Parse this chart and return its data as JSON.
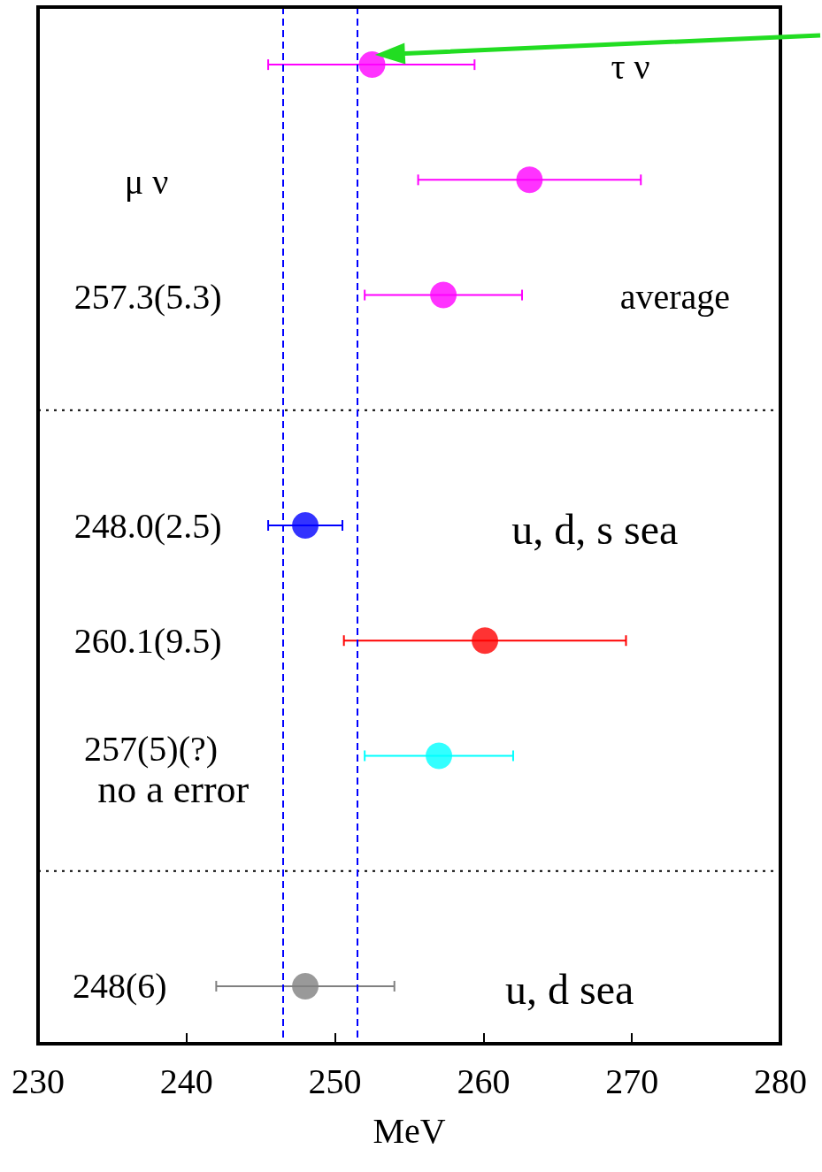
{
  "chart_data": {
    "type": "scatter",
    "orientation": "horizontal",
    "categories": [
      null,
      null,
      null,
      null,
      null,
      null,
      null,
      null,
      null
    ],
    "values": [
      252.5,
      263.1,
      257.3,
      null,
      248.0,
      260.1,
      257.0,
      null,
      248.0
    ],
    "errors": [
      [
        245.5,
        259.4
      ],
      7.5,
      5.3,
      null,
      2.5,
      9.5,
      5,
      null,
      6
    ],
    "colors": [
      "#ff00ff",
      "#ff00ff",
      "#ff00ff",
      null,
      "#0000ff",
      "#ff0000",
      "#00ffff",
      null,
      "#808080"
    ],
    "xlabel": "MeV",
    "xlim": [
      230,
      280
    ],
    "xticks": [
      230,
      240,
      250,
      260,
      270,
      280
    ],
    "tick_labels": "x",
    "marker": "circle",
    "ref_lines": [
      {
        "axis": "x",
        "value": 246.5,
        "color": "#0000ff",
        "line_style": "dashed"
      },
      {
        "axis": "x",
        "value": 251.5,
        "color": "#0000ff",
        "line_style": "dashed"
      }
    ],
    "annotations": [
      "τ ν",
      "μ ν",
      "257.3(5.3)",
      "average",
      "248.0(2.5)",
      "u, d, s sea",
      "260.1(9.5)",
      "257(5)(?)",
      "no a error",
      "248(6)",
      "u, d sea"
    ]
  }
}
